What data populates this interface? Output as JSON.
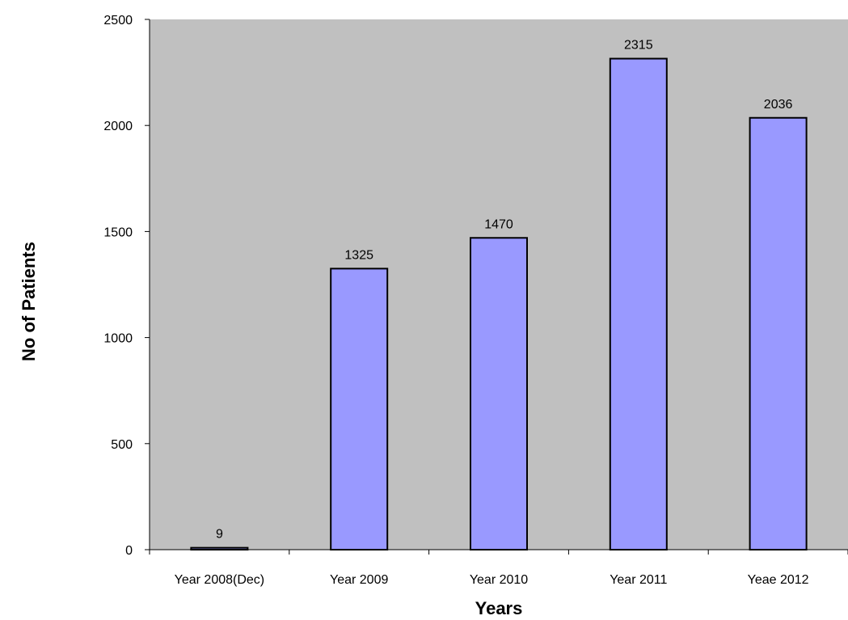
{
  "chart_data": {
    "type": "bar",
    "categories": [
      "Year 2008(Dec)",
      "Year 2009",
      "Year 2010",
      "Year 2011",
      "Yeae 2012"
    ],
    "values": [
      9,
      1325,
      1470,
      2315,
      2036
    ],
    "data_labels": [
      "9",
      "1325",
      "1470",
      "2315",
      "2036"
    ],
    "xlabel": "Years",
    "ylabel": "No of Patients",
    "ylim": [
      0,
      2500
    ],
    "yticks": [
      0,
      500,
      1000,
      1500,
      2000,
      2500
    ],
    "ytick_labels": [
      "0",
      "500",
      "1000",
      "1500",
      "2000",
      "2500"
    ],
    "grid": false,
    "legend": "none",
    "colors": {
      "plot_background": "#c0c0c0",
      "bar_fill": "#9999ff",
      "bar_stroke": "#000000"
    }
  }
}
